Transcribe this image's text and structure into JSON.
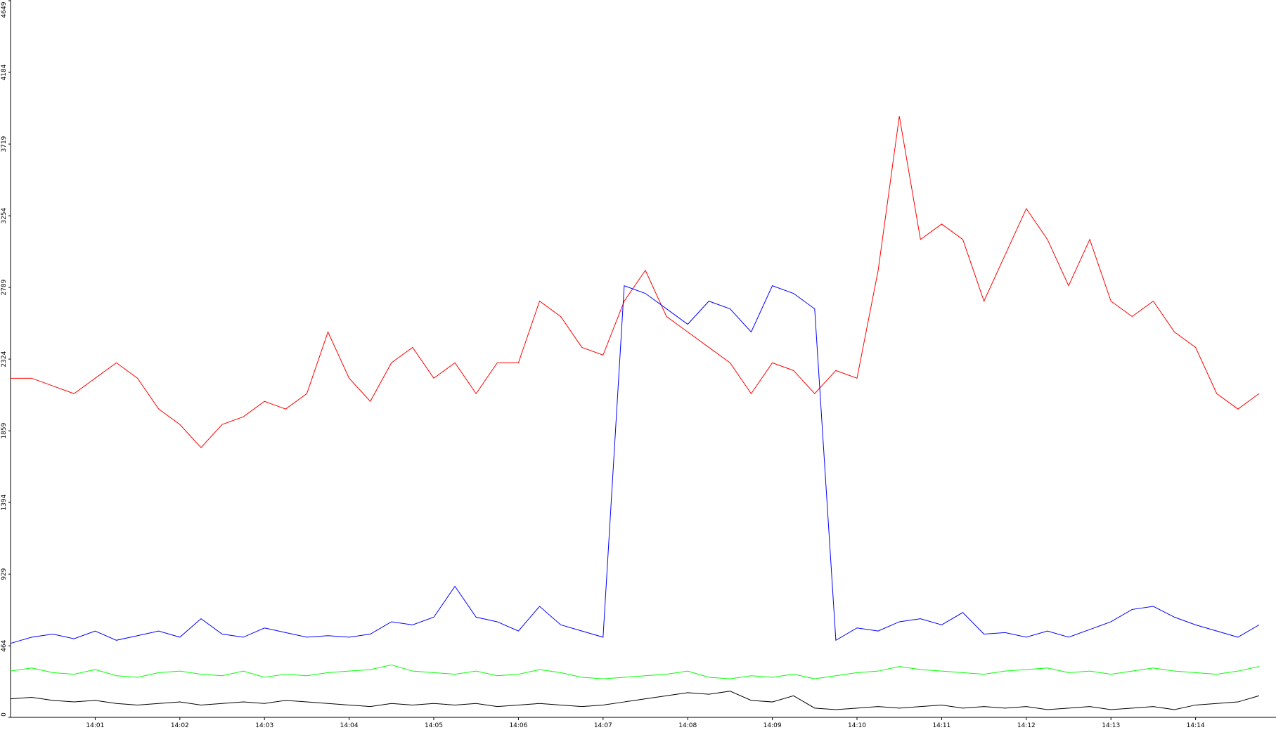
{
  "chart_data": {
    "type": "line",
    "x": [
      0,
      0.25,
      0.5,
      0.75,
      1,
      1.25,
      1.5,
      1.75,
      2,
      2.25,
      2.5,
      2.75,
      3,
      3.25,
      3.5,
      3.75,
      4,
      4.25,
      4.5,
      4.75,
      5,
      5.25,
      5.5,
      5.75,
      6,
      6.25,
      6.5,
      6.75,
      7,
      7.25,
      7.5,
      7.75,
      8,
      8.25,
      8.5,
      8.75,
      9,
      9.25,
      9.5,
      9.75,
      10,
      10.25,
      10.5,
      10.75,
      11,
      11.25,
      11.5,
      11.75,
      12,
      12.25,
      12.5,
      12.75,
      13,
      13.25,
      13.5,
      13.75,
      14,
      14.25,
      14.5,
      14.75
    ],
    "series": [
      {
        "color": "#ff0000",
        "values": [
          2200,
          2200,
          2150,
          2100,
          2200,
          2300,
          2200,
          2000,
          1900,
          1750,
          1900,
          1950,
          2050,
          2000,
          2100,
          2500,
          2200,
          2050,
          2300,
          2400,
          2200,
          2300,
          2100,
          2300,
          2300,
          2700,
          2600,
          2400,
          2350,
          2700,
          2900,
          2600,
          2500,
          2400,
          2300,
          2100,
          2300,
          2250,
          2100,
          2250,
          2200,
          2900,
          3900,
          3100,
          3200,
          3100,
          2700,
          3000,
          3300,
          3100,
          2800,
          3100,
          2700,
          2600,
          2700,
          2500,
          2400,
          2100,
          2000,
          2100
        ]
      },
      {
        "color": "#0000ff",
        "values": [
          480,
          520,
          540,
          510,
          560,
          500,
          530,
          560,
          520,
          640,
          540,
          520,
          580,
          550,
          520,
          530,
          520,
          540,
          620,
          600,
          650,
          850,
          650,
          620,
          560,
          720,
          600,
          560,
          520,
          2800,
          2750,
          2650,
          2550,
          2700,
          2650,
          2500,
          2800,
          2750,
          2650,
          500,
          580,
          560,
          620,
          640,
          600,
          680,
          540,
          550,
          520,
          560,
          520,
          570,
          620,
          700,
          720,
          650,
          600,
          560,
          520,
          600
        ]
      },
      {
        "color": "#00ff00",
        "values": [
          300,
          320,
          290,
          280,
          310,
          270,
          260,
          290,
          300,
          280,
          270,
          300,
          260,
          280,
          270,
          290,
          300,
          310,
          340,
          300,
          290,
          280,
          300,
          270,
          280,
          310,
          290,
          260,
          250,
          260,
          270,
          280,
          300,
          260,
          250,
          270,
          260,
          280,
          250,
          270,
          290,
          300,
          330,
          310,
          300,
          290,
          280,
          300,
          310,
          320,
          290,
          300,
          280,
          300,
          320,
          300,
          290,
          280,
          300,
          330
        ]
      },
      {
        "color": "#000000",
        "values": [
          120,
          130,
          110,
          100,
          110,
          90,
          80,
          90,
          100,
          80,
          90,
          100,
          90,
          110,
          100,
          90,
          80,
          70,
          90,
          80,
          90,
          80,
          90,
          70,
          80,
          90,
          80,
          70,
          80,
          100,
          120,
          140,
          160,
          150,
          170,
          110,
          100,
          140,
          60,
          50,
          60,
          70,
          60,
          70,
          80,
          60,
          70,
          60,
          70,
          50,
          60,
          70,
          50,
          60,
          70,
          50,
          80,
          90,
          100,
          140
        ]
      }
    ],
    "xlim": [
      0,
      14.95
    ],
    "xticks": [
      {
        "value": 1,
        "label": "14:01"
      },
      {
        "value": 2,
        "label": "14:02"
      },
      {
        "value": 3,
        "label": "14:03"
      },
      {
        "value": 4,
        "label": "14:04"
      },
      {
        "value": 5,
        "label": "14:05"
      },
      {
        "value": 6,
        "label": "14:06"
      },
      {
        "value": 7,
        "label": "14:07"
      },
      {
        "value": 8,
        "label": "14:08"
      },
      {
        "value": 9,
        "label": "14:09"
      },
      {
        "value": 10,
        "label": "14:10"
      },
      {
        "value": 11,
        "label": "14:11"
      },
      {
        "value": 12,
        "label": "14:12"
      },
      {
        "value": 13,
        "label": "14:13"
      },
      {
        "value": 14,
        "label": "14:14"
      }
    ],
    "ylim": [
      0,
      4649
    ],
    "yticks": [
      0,
      464,
      929,
      1394,
      1859,
      2324,
      2789,
      3254,
      3719,
      4184,
      4649
    ]
  }
}
